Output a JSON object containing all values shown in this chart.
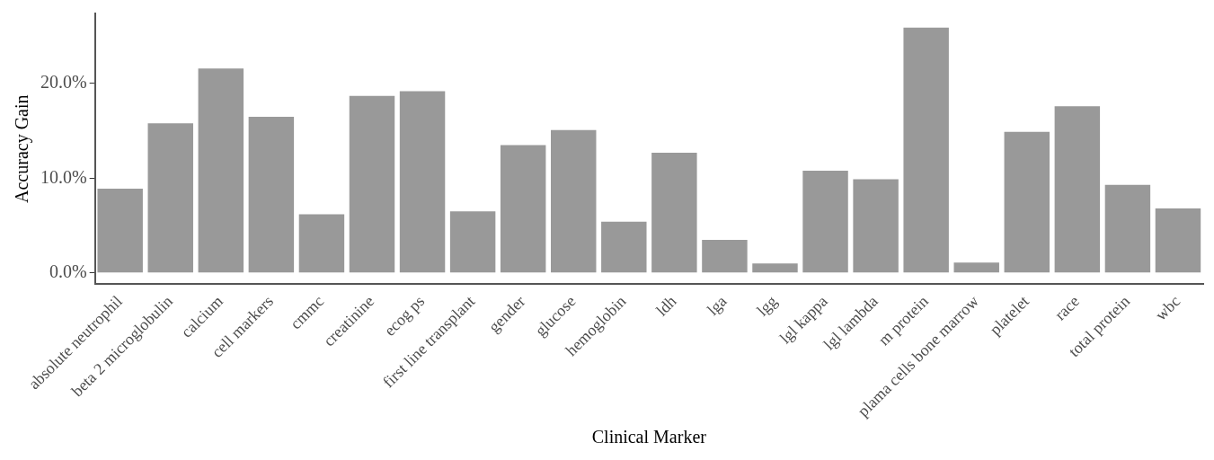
{
  "chart_data": {
    "type": "bar",
    "xlabel": "Clinical Marker",
    "ylabel": "Accuracy Gain",
    "categories": [
      "absolute neutrophil",
      "beta 2 microglobulin",
      "calcium",
      "cell markers",
      "cmmc",
      "creatinine",
      "ecog ps",
      "first line transplant",
      "gender",
      "glucose",
      "hemoglobin",
      "ldh",
      "lga",
      "lgg",
      "lgl kappa",
      "lgl lambda",
      "m protein",
      "plama cells bone marrow",
      "platelet",
      "race",
      "total protein",
      "wbc"
    ],
    "values": [
      8.9,
      15.8,
      21.6,
      16.5,
      6.2,
      18.7,
      19.2,
      6.5,
      13.5,
      15.1,
      5.4,
      12.7,
      3.5,
      1.0,
      10.8,
      9.9,
      25.9,
      1.1,
      14.9,
      17.6,
      9.3,
      6.8
    ],
    "color": "#999999",
    "ylim": [
      -1.2,
      27.4
    ],
    "yticks": [
      {
        "value": 0,
        "label": "0.0%"
      },
      {
        "value": 10,
        "label": "10.0%"
      },
      {
        "value": 20,
        "label": "20.0%"
      }
    ],
    "grid": false,
    "legend": false
  }
}
